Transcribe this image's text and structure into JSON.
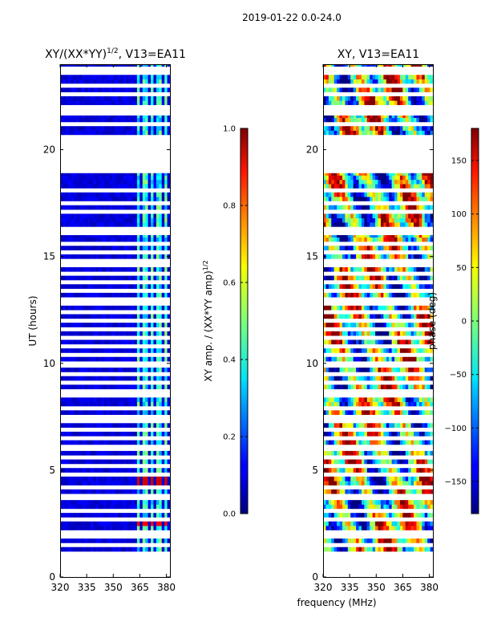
{
  "figure": {
    "suptitle": "2019-01-22 0.0-24.0",
    "xlabel": "frequency (MHz)"
  },
  "chart_data": [
    {
      "type": "heatmap",
      "title": "XY/(XX*YY)",
      "title_superscript": "1/2",
      "title_suffix": ", V13=EA11",
      "xlabel": "",
      "ylabel": "UT (hours)",
      "xlim": [
        320,
        382
      ],
      "ylim": [
        0,
        24
      ],
      "xticks": [
        "320",
        "335",
        "350",
        "365",
        "380"
      ],
      "xtick_values": [
        320,
        335,
        350,
        365,
        380
      ],
      "yticks": [
        "0",
        "5",
        "10",
        "15",
        "20"
      ],
      "ytick_values": [
        0,
        5,
        10,
        15,
        20
      ],
      "colormap": "jet",
      "colorbar": {
        "label": "XY amp. / (XX*YY amp)",
        "label_superscript": "1/2",
        "range": [
          0.0,
          1.0
        ],
        "ticks": [
          "0.0",
          "0.2",
          "0.4",
          "0.6",
          "0.8",
          "1.0"
        ],
        "tick_values": [
          0.0,
          0.2,
          0.4,
          0.6,
          0.8,
          1.0
        ]
      },
      "data_bands": [
        [
          1.2,
          3.6
        ],
        [
          3.9,
          5.9
        ],
        [
          6.2,
          9.8
        ],
        [
          10.1,
          16.0
        ],
        [
          16.4,
          18.9
        ],
        [
          20.7,
          21.6
        ],
        [
          21.9,
          24.0
        ]
      ],
      "flagged_rows_hours": [
        1.55,
        1.9,
        2.15,
        2.7,
        3.1,
        4.15,
        4.85,
        5.3,
        5.6,
        6.5,
        6.9,
        7.3,
        7.6,
        7.95,
        8.4,
        8.75,
        9.1,
        9.45,
        10.45,
        10.8,
        11.2,
        11.6,
        11.95,
        12.3,
        12.7,
        13.05,
        13.4,
        13.75,
        14.1,
        14.5,
        14.85,
        15.25,
        15.6,
        17.0,
        17.4,
        18.1,
        21.1,
        21.25,
        22.05,
        22.6,
        23.05,
        23.5,
        23.75
      ],
      "bright_freq_bands_mhz": [
        [
          363,
          365
        ],
        [
          367,
          369
        ],
        [
          371,
          373
        ],
        [
          375,
          377
        ],
        [
          379,
          381
        ]
      ],
      "background_amplitude": 0.05,
      "band_amplitude": 0.4,
      "hot_spots": [
        {
          "freq_mhz": [
            363,
            381
          ],
          "hours": [
            4.3,
            4.75
          ],
          "value": 0.92
        },
        {
          "freq_mhz": [
            363,
            381
          ],
          "hours": [
            2.2,
            2.55
          ],
          "value": 0.88
        }
      ]
    },
    {
      "type": "heatmap",
      "title": "XY, V13=EA11",
      "xlabel": "",
      "ylabel": "",
      "xlim": [
        320,
        382
      ],
      "ylim": [
        0,
        24
      ],
      "xticks": [
        "320",
        "335",
        "350",
        "365",
        "380"
      ],
      "xtick_values": [
        320,
        335,
        350,
        365,
        380
      ],
      "yticks": [
        "0",
        "5",
        "10",
        "15",
        "20"
      ],
      "ytick_values": [
        0,
        5,
        10,
        15,
        20
      ],
      "colormap": "jet",
      "colorbar": {
        "label": "phase (deg)",
        "range": [
          -180,
          180
        ],
        "ticks": [
          "−150",
          "−100",
          "−50",
          "0",
          "50",
          "100",
          "150"
        ],
        "tick_values": [
          -150,
          -100,
          -50,
          0,
          50,
          100,
          150
        ]
      },
      "data_bands": [
        [
          1.2,
          3.6
        ],
        [
          3.9,
          5.9
        ],
        [
          6.2,
          9.8
        ],
        [
          10.1,
          16.0
        ],
        [
          16.4,
          18.9
        ],
        [
          20.7,
          21.6
        ],
        [
          21.9,
          24.0
        ]
      ],
      "flagged_rows_hours": [
        1.55,
        1.9,
        2.15,
        2.7,
        3.1,
        4.15,
        4.85,
        5.3,
        5.6,
        6.5,
        6.9,
        7.3,
        7.6,
        7.95,
        8.4,
        8.75,
        9.1,
        9.45,
        10.45,
        10.8,
        11.2,
        11.6,
        11.95,
        12.3,
        12.7,
        13.05,
        13.4,
        13.75,
        14.1,
        14.5,
        14.85,
        15.25,
        15.6,
        17.0,
        17.4,
        18.1,
        21.1,
        21.25,
        22.05,
        22.6,
        23.05,
        23.5,
        23.75
      ],
      "phase_scatter_deg": 180
    }
  ]
}
